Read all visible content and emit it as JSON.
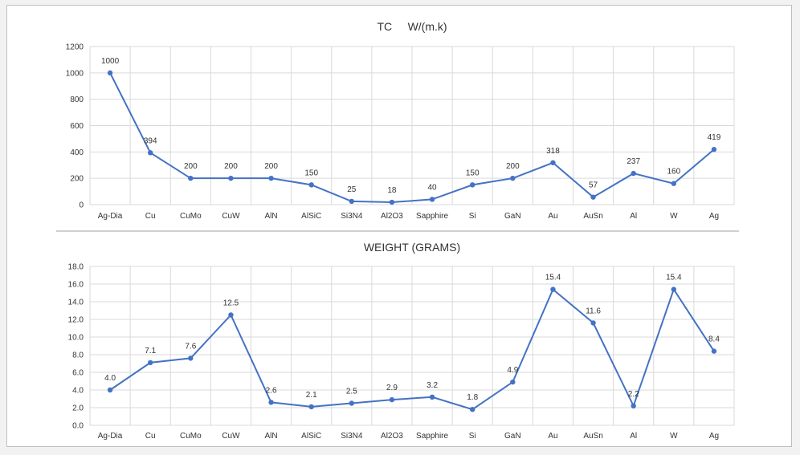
{
  "colors": {
    "series": "#4472c4",
    "grid": "#d9d9d9",
    "axis": "#bfbfbf"
  },
  "chart_data": [
    {
      "type": "line",
      "title": "TC     W/(m.k)",
      "categories": [
        "Ag-Dia",
        "Cu",
        "CuMo",
        "CuW",
        "AlN",
        "AlSiC",
        "Si3N4",
        "Al2O3",
        "Sapphire",
        "Si",
        "GaN",
        "Au",
        "AuSn",
        "Al",
        "W",
        "Ag"
      ],
      "values": [
        1000,
        394,
        200,
        200,
        200,
        150,
        25,
        18,
        40,
        150,
        200,
        318,
        57,
        237,
        160,
        419
      ],
      "data_labels": [
        "1000",
        "394",
        "200",
        "200",
        "200",
        "150",
        "25",
        "18",
        "40",
        "150",
        "200",
        "318",
        "57",
        "237",
        "160",
        "419"
      ],
      "ylim": [
        0,
        1200
      ],
      "yticks": [
        "0",
        "200",
        "400",
        "600",
        "800",
        "1000",
        "1200"
      ],
      "grid": true,
      "legend": "none"
    },
    {
      "type": "line",
      "title": "WEIGHT (GRAMS)",
      "categories": [
        "Ag-Dia",
        "Cu",
        "CuMo",
        "CuW",
        "AlN",
        "AlSiC",
        "Si3N4",
        "Al2O3",
        "Sapphire",
        "Si",
        "GaN",
        "Au",
        "AuSn",
        "Al",
        "W",
        "Ag"
      ],
      "values": [
        4.0,
        7.1,
        7.6,
        12.5,
        2.6,
        2.1,
        2.5,
        2.9,
        3.2,
        1.8,
        4.9,
        15.4,
        11.6,
        2.2,
        15.4,
        8.4
      ],
      "data_labels": [
        "4.0",
        "7.1",
        "7.6",
        "12.5",
        "2.6",
        "2.1",
        "2.5",
        "2.9",
        "3.2",
        "1.8",
        "4.9",
        "15.4",
        "11.6",
        "2.2",
        "15.4",
        "8.4"
      ],
      "ylim": [
        0,
        18
      ],
      "yticks": [
        "0.0",
        "2.0",
        "4.0",
        "6.0",
        "8.0",
        "10.0",
        "12.0",
        "14.0",
        "16.0",
        "18.0"
      ],
      "grid": true,
      "legend": "none"
    }
  ]
}
